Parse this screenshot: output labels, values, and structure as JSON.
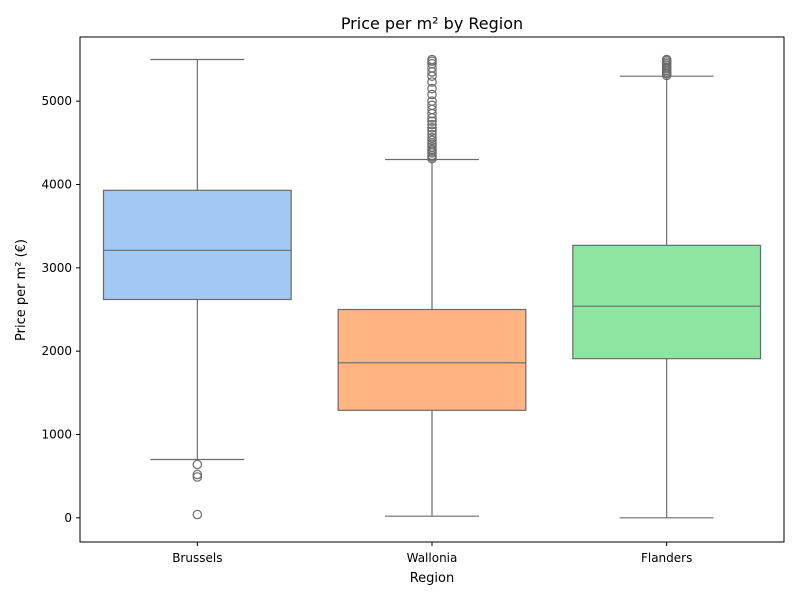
{
  "chart_data": {
    "type": "box",
    "title": "Price per m² by Region",
    "xlabel": "Region",
    "ylabel": "Price per m² (€)",
    "ylim": [
      -290,
      5770
    ],
    "yticks": [
      0,
      1000,
      2000,
      3000,
      4000,
      5000
    ],
    "grid": false,
    "categories": [
      "Brussels",
      "Wallonia",
      "Flanders"
    ],
    "boxes": [
      {
        "name": "Brussels",
        "color": "#a1c9f4",
        "whisker_low": 700,
        "q1": 2620,
        "median": 3210,
        "q3": 3930,
        "whisker_high": 5500,
        "outliers": [
          640,
          520,
          490,
          40
        ]
      },
      {
        "name": "Wallonia",
        "color": "#ffb482",
        "whisker_low": 20,
        "q1": 1290,
        "median": 1860,
        "q3": 2500,
        "whisker_high": 4300,
        "outliers": [
          4310,
          4330,
          4350,
          4380,
          4400,
          4420,
          4450,
          4480,
          4500,
          4530,
          4560,
          4600,
          4640,
          4680,
          4720,
          4760,
          4800,
          4850,
          4900,
          4950,
          5000,
          5080,
          5150,
          5230,
          5300,
          5350,
          5400,
          5450,
          5480,
          5500
        ]
      },
      {
        "name": "Flanders",
        "color": "#8de5a1",
        "whisker_low": 0,
        "q1": 1910,
        "median": 2540,
        "q3": 3270,
        "whisker_high": 5300,
        "outliers": [
          5310,
          5330,
          5350,
          5370,
          5390,
          5410,
          5430,
          5450,
          5470,
          5490,
          5500
        ]
      }
    ]
  }
}
